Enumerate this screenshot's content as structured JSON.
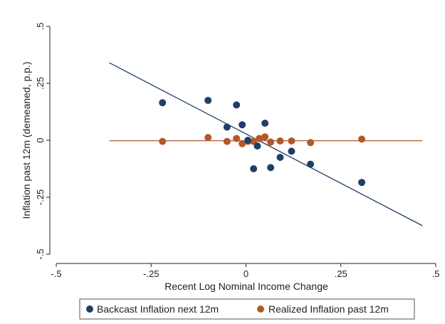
{
  "chart_data": {
    "type": "scatter",
    "title": "",
    "xlabel": "Recent Log Nominal Income Change",
    "ylabel": "Inflation past 12m (demeaned, p.p.)",
    "xlim": [
      -0.5,
      0.5
    ],
    "ylim": [
      -0.5,
      0.5
    ],
    "xticks": [
      -0.5,
      -0.25,
      0,
      0.25,
      0.5
    ],
    "xtick_labels": [
      "-.5",
      "-.25",
      "0",
      ".25",
      ".5"
    ],
    "yticks": [
      -0.5,
      -0.25,
      0,
      0.25,
      0.5
    ],
    "ytick_labels": [
      "-.5",
      "-.25",
      "0",
      ".25",
      ".5"
    ],
    "grid": false,
    "legend_position": "bottom",
    "series": [
      {
        "name": "Backcast Inflation next 12m",
        "color": "#1f3f66",
        "points": [
          [
            -0.22,
            0.165
          ],
          [
            -0.1,
            0.175
          ],
          [
            -0.05,
            0.058
          ],
          [
            -0.025,
            0.155
          ],
          [
            -0.01,
            0.068
          ],
          [
            0.005,
            0.0
          ],
          [
            0.02,
            -0.125
          ],
          [
            0.03,
            -0.025
          ],
          [
            0.05,
            0.075
          ],
          [
            0.065,
            -0.12
          ],
          [
            0.09,
            -0.075
          ],
          [
            0.12,
            -0.048
          ],
          [
            0.17,
            -0.105
          ],
          [
            0.305,
            -0.185
          ]
        ],
        "fit_line": [
          [
            -0.36,
            0.34
          ],
          [
            0.465,
            -0.375
          ]
        ]
      },
      {
        "name": "Realized Inflation past 12m",
        "color": "#b5562a",
        "points": [
          [
            -0.22,
            -0.005
          ],
          [
            -0.1,
            0.012
          ],
          [
            -0.05,
            -0.005
          ],
          [
            -0.025,
            0.008
          ],
          [
            -0.01,
            -0.015
          ],
          [
            0.005,
            -0.005
          ],
          [
            0.02,
            -0.005
          ],
          [
            0.035,
            0.008
          ],
          [
            0.05,
            0.015
          ],
          [
            0.065,
            -0.008
          ],
          [
            0.09,
            -0.003
          ],
          [
            0.12,
            -0.003
          ],
          [
            0.17,
            -0.01
          ],
          [
            0.305,
            0.005
          ]
        ],
        "fit_line": [
          [
            -0.36,
            -0.002
          ],
          [
            0.465,
            -0.002
          ]
        ]
      }
    ]
  }
}
